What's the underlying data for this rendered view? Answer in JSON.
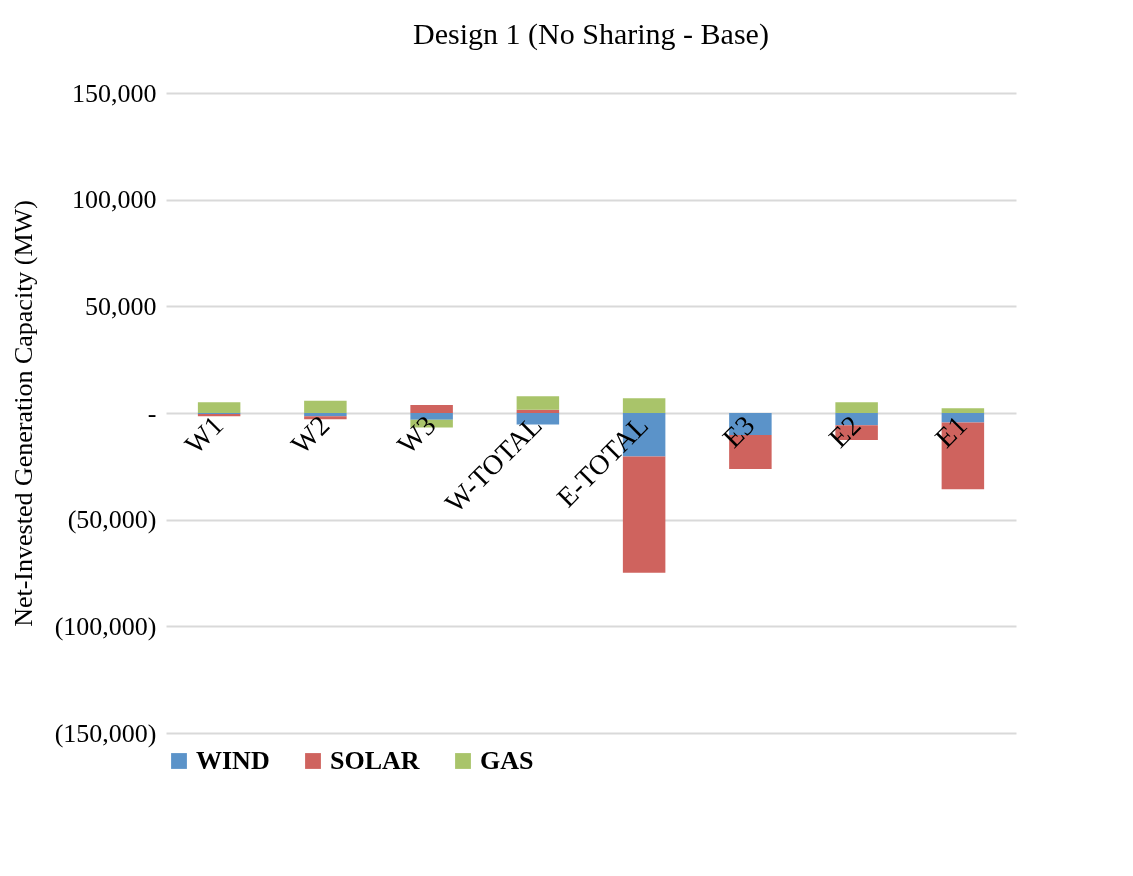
{
  "chart_data": {
    "type": "bar",
    "title": "Design 1 (No Sharing - Base)",
    "ylabel": "Net-Invested Generation Capacity (MW)",
    "categories": [
      "W1",
      "W2",
      "W3",
      "W-TOTAL",
      "E-TOTAL",
      "E3",
      "E2",
      "E1"
    ],
    "series": [
      {
        "name": "WIND",
        "color": "#5b93c9",
        "values": [
          -500,
          -1500,
          -3200,
          -5400,
          -20400,
          -10300,
          -5800,
          -4500
        ]
      },
      {
        "name": "SOLAR",
        "color": "#cf635e",
        "values": [
          -1000,
          -1400,
          3700,
          1500,
          -54500,
          -15900,
          -6800,
          -31200
        ]
      },
      {
        "name": "GAS",
        "color": "#a9c46a",
        "values": [
          5000,
          5700,
          -3600,
          6300,
          6900,
          null,
          5000,
          2200
        ]
      }
    ],
    "stacked": true,
    "ylim": [
      -150000,
      150000
    ],
    "yticks": [
      {
        "value": -150000,
        "label": "(150,000)"
      },
      {
        "value": -100000,
        "label": "(100,000)"
      },
      {
        "value": -50000,
        "label": "(50,000)"
      },
      {
        "value": 0,
        "label": "-"
      },
      {
        "value": 50000,
        "label": "50,000"
      },
      {
        "value": 100000,
        "label": "100,000"
      },
      {
        "value": 150000,
        "label": "150,000"
      }
    ],
    "grid": "y",
    "legend": "bottom"
  }
}
